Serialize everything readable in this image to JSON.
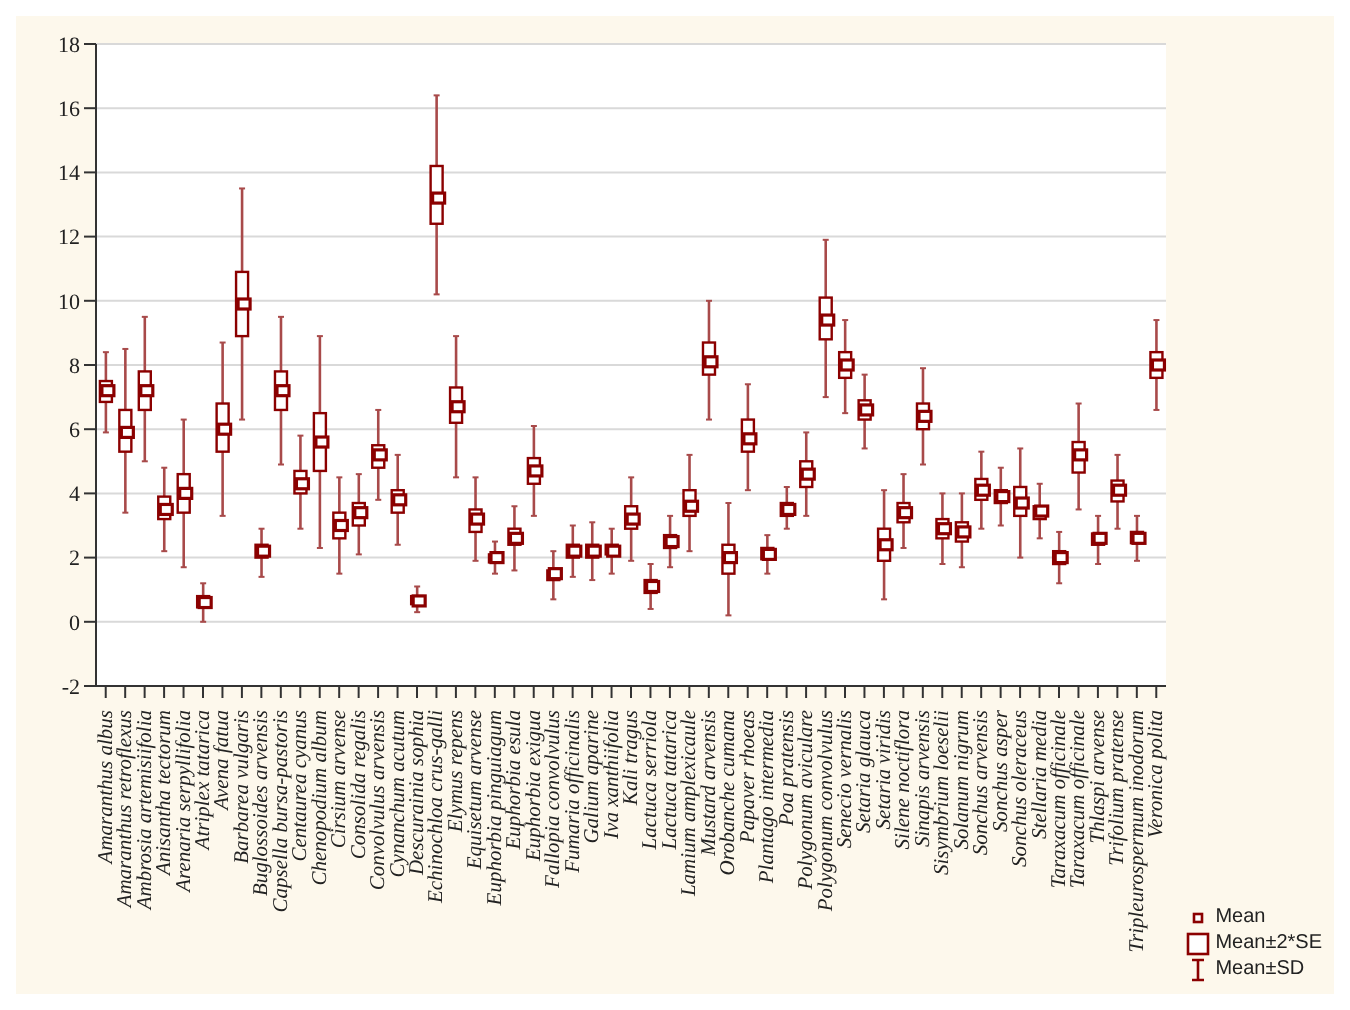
{
  "chart_data": {
    "type": "box",
    "categories": [
      "Amaranthus albus",
      "Amaranthus retroflexus",
      "Ambrosia artemisiifolia",
      "Anisantha tectorum",
      "Arenaria serpyllifolia",
      "Atriplex tatarica",
      "Avena fatua",
      "Barbarea vulgaris",
      "Buglossoides arvensis",
      "Capsella bursa-pastoris",
      "Centaurea cyanus",
      "Chenopodium album",
      "Cirsium arvense",
      "Consolida regalis",
      "Convolvulus arvensis",
      "Cynanchum acutum",
      "Descurainia sophia",
      "Echinochloa crus-galli",
      "Elymus repens",
      "Equisetum arvense",
      "Euphorbia pinguiagum",
      "Euphorbia esula",
      "Euphorbia exigua",
      "Fallopia convolvulus",
      "Fumaria officinalis",
      "Galium aparine",
      "Iva xanthiifolia",
      "Kali tragus",
      "Lactuca serriola",
      "Lactuca tatarica",
      "Lamium amplexicaule",
      "Mustard arvensis",
      "Orobanche cumana",
      "Papaver rhoeas",
      "Plantago intermedia",
      "Poa pratensis",
      "Polygonum aviculare",
      "Polygonum convolvulus",
      "Senecio vernalis",
      "Setaria glauca",
      "Setaria viridis",
      "Silene noctiflora",
      "Sinapis arvensis",
      "Sisymbrium loeselii",
      "Solanum nigrum",
      "Sonchus arvensis",
      "Sonchus asper",
      "Sonchus oleraceus",
      "Stellaria media",
      "Taraxacum officinale",
      "Taraxacum officinale",
      "Thlaspi arvense",
      "Trifolium pratense",
      "Tripleurospermum inodorum",
      "Veronica polita"
    ],
    "boxes": [
      {
        "low": 5.9,
        "q1": 6.85,
        "mean": 7.2,
        "q3": 7.5,
        "high": 8.4
      },
      {
        "low": 3.4,
        "q1": 5.3,
        "mean": 5.9,
        "q3": 6.6,
        "high": 8.5
      },
      {
        "low": 5.0,
        "q1": 6.6,
        "mean": 7.2,
        "q3": 7.8,
        "high": 9.5
      },
      {
        "low": 2.2,
        "q1": 3.2,
        "mean": 3.5,
        "q3": 3.9,
        "high": 4.8
      },
      {
        "low": 1.7,
        "q1": 3.4,
        "mean": 4.0,
        "q3": 4.6,
        "high": 6.3
      },
      {
        "low": 0.0,
        "q1": 0.45,
        "mean": 0.6,
        "q3": 0.8,
        "high": 1.2
      },
      {
        "low": 3.3,
        "q1": 5.3,
        "mean": 6.0,
        "q3": 6.8,
        "high": 8.7
      },
      {
        "low": 6.3,
        "q1": 8.9,
        "mean": 9.9,
        "q3": 10.9,
        "high": 13.5
      },
      {
        "low": 1.4,
        "q1": 2.0,
        "mean": 2.2,
        "q3": 2.4,
        "high": 2.9
      },
      {
        "low": 4.9,
        "q1": 6.6,
        "mean": 7.2,
        "q3": 7.8,
        "high": 9.5
      },
      {
        "low": 2.9,
        "q1": 4.0,
        "mean": 4.3,
        "q3": 4.7,
        "high": 5.8
      },
      {
        "low": 2.3,
        "q1": 4.7,
        "mean": 5.6,
        "q3": 6.5,
        "high": 8.9
      },
      {
        "low": 1.5,
        "q1": 2.6,
        "mean": 3.0,
        "q3": 3.4,
        "high": 4.5
      },
      {
        "low": 2.1,
        "q1": 3.0,
        "mean": 3.4,
        "q3": 3.7,
        "high": 4.6
      },
      {
        "low": 3.8,
        "q1": 4.8,
        "mean": 5.2,
        "q3": 5.5,
        "high": 6.6
      },
      {
        "low": 2.4,
        "q1": 3.4,
        "mean": 3.8,
        "q3": 4.1,
        "high": 5.2
      },
      {
        "low": 0.3,
        "q1": 0.55,
        "mean": 0.65,
        "q3": 0.8,
        "high": 1.1
      },
      {
        "low": 10.2,
        "q1": 12.4,
        "mean": 13.2,
        "q3": 14.2,
        "high": 16.4
      },
      {
        "low": 4.5,
        "q1": 6.2,
        "mean": 6.7,
        "q3": 7.3,
        "high": 8.9
      },
      {
        "low": 1.9,
        "q1": 2.8,
        "mean": 3.2,
        "q3": 3.5,
        "high": 4.5
      },
      {
        "low": 1.5,
        "q1": 1.85,
        "mean": 2.0,
        "q3": 2.1,
        "high": 2.5
      },
      {
        "low": 1.6,
        "q1": 2.4,
        "mean": 2.6,
        "q3": 2.9,
        "high": 3.6
      },
      {
        "low": 3.3,
        "q1": 4.3,
        "mean": 4.7,
        "q3": 5.1,
        "high": 6.1
      },
      {
        "low": 0.7,
        "q1": 1.3,
        "mean": 1.5,
        "q3": 1.6,
        "high": 2.2
      },
      {
        "low": 1.4,
        "q1": 2.0,
        "mean": 2.2,
        "q3": 2.4,
        "high": 3.0
      },
      {
        "low": 1.3,
        "q1": 2.0,
        "mean": 2.2,
        "q3": 2.4,
        "high": 3.1
      },
      {
        "low": 1.5,
        "q1": 2.1,
        "mean": 2.2,
        "q3": 2.4,
        "high": 2.9
      },
      {
        "low": 1.9,
        "q1": 2.9,
        "mean": 3.2,
        "q3": 3.6,
        "high": 4.5
      },
      {
        "low": 0.4,
        "q1": 0.9,
        "mean": 1.1,
        "q3": 1.3,
        "high": 1.8
      },
      {
        "low": 1.7,
        "q1": 2.3,
        "mean": 2.5,
        "q3": 2.7,
        "high": 3.3
      },
      {
        "low": 2.2,
        "q1": 3.3,
        "mean": 3.6,
        "q3": 4.1,
        "high": 5.2
      },
      {
        "low": 6.3,
        "q1": 7.7,
        "mean": 8.1,
        "q3": 8.7,
        "high": 10.0
      },
      {
        "low": 0.2,
        "q1": 1.5,
        "mean": 2.0,
        "q3": 2.4,
        "high": 3.7
      },
      {
        "low": 4.1,
        "q1": 5.3,
        "mean": 5.7,
        "q3": 6.3,
        "high": 7.4
      },
      {
        "low": 1.5,
        "q1": 1.95,
        "mean": 2.1,
        "q3": 2.3,
        "high": 2.7
      },
      {
        "low": 2.9,
        "q1": 3.3,
        "mean": 3.5,
        "q3": 3.7,
        "high": 4.2
      },
      {
        "low": 3.3,
        "q1": 4.2,
        "mean": 4.6,
        "q3": 5.0,
        "high": 5.9
      },
      {
        "low": 7.0,
        "q1": 8.8,
        "mean": 9.4,
        "q3": 10.1,
        "high": 11.9
      },
      {
        "low": 6.5,
        "q1": 7.6,
        "mean": 8.0,
        "q3": 8.4,
        "high": 9.4
      },
      {
        "low": 5.4,
        "q1": 6.3,
        "mean": 6.6,
        "q3": 6.9,
        "high": 7.7
      },
      {
        "low": 0.7,
        "q1": 1.9,
        "mean": 2.4,
        "q3": 2.9,
        "high": 4.1
      },
      {
        "low": 2.3,
        "q1": 3.1,
        "mean": 3.4,
        "q3": 3.7,
        "high": 4.6
      },
      {
        "low": 4.9,
        "q1": 6.0,
        "mean": 6.4,
        "q3": 6.8,
        "high": 7.9
      },
      {
        "low": 1.8,
        "q1": 2.6,
        "mean": 2.9,
        "q3": 3.2,
        "high": 4.0
      },
      {
        "low": 1.7,
        "q1": 2.5,
        "mean": 2.8,
        "q3": 3.1,
        "high": 4.0
      },
      {
        "low": 2.9,
        "q1": 3.8,
        "mean": 4.1,
        "q3": 4.45,
        "high": 5.3
      },
      {
        "low": 3.0,
        "q1": 3.7,
        "mean": 3.9,
        "q3": 4.1,
        "high": 4.8
      },
      {
        "low": 2.0,
        "q1": 3.3,
        "mean": 3.7,
        "q3": 4.2,
        "high": 5.4
      },
      {
        "low": 2.6,
        "q1": 3.2,
        "mean": 3.45,
        "q3": 3.6,
        "high": 4.3
      },
      {
        "low": 1.2,
        "q1": 1.8,
        "mean": 2.0,
        "q3": 2.2,
        "high": 2.8
      },
      {
        "low": 3.5,
        "q1": 4.65,
        "mean": 5.2,
        "q3": 5.6,
        "high": 6.8
      },
      {
        "low": 1.8,
        "q1": 2.4,
        "mean": 2.6,
        "q3": 2.75,
        "high": 3.3
      },
      {
        "low": 2.9,
        "q1": 3.75,
        "mean": 4.1,
        "q3": 4.4,
        "high": 5.2
      },
      {
        "low": 1.9,
        "q1": 2.45,
        "mean": 2.6,
        "q3": 2.8,
        "high": 3.3
      },
      {
        "low": 6.6,
        "q1": 7.6,
        "mean": 8.0,
        "q3": 8.4,
        "high": 9.4
      }
    ],
    "color": "#8b0000",
    "ylim": [
      -2,
      18
    ],
    "yticks": [
      -2,
      0,
      2,
      4,
      6,
      8,
      10,
      12,
      14,
      16,
      18
    ],
    "grid": "y",
    "annotations": [
      "Mean",
      "Mean±2*SE",
      "Mean±SD"
    ]
  }
}
